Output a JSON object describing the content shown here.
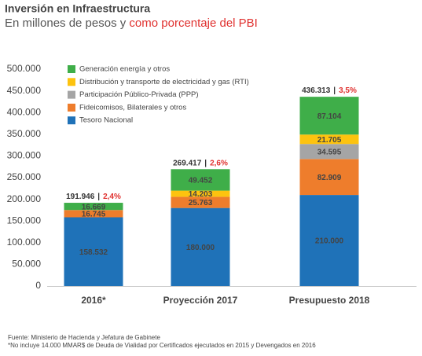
{
  "chart_data": {
    "type": "stacked-bar",
    "title": "Inversión en Infraestructura",
    "subtitle": "En millones de pesos y ",
    "subtitle_highlight": "como porcentaje del PBI",
    "categories": [
      "2016*",
      "Proyección 2017",
      "Presupuesto 2018"
    ],
    "series": [
      {
        "name": "Tesoro Nacional",
        "color": "#1f72b8",
        "values": [
          158532,
          180000,
          210000
        ],
        "value_labels": [
          "158.532",
          "180.000",
          "210.000"
        ]
      },
      {
        "name": "Fideicomisos, Bilaterales y otros",
        "color": "#ee7d2c",
        "values": [
          16745,
          25763,
          82909
        ],
        "value_labels": [
          "16.745",
          "25.763",
          "82.909"
        ]
      },
      {
        "name": "Participación Público-Privada (PPP)",
        "color": "#a5a5a5",
        "values": [
          null,
          null,
          34595
        ],
        "value_labels": [
          null,
          null,
          "34.595"
        ]
      },
      {
        "name": "Distribución y transporte de electricidad y gas (RTI)",
        "color": "#fdc30f",
        "values": [
          null,
          14203,
          21705
        ],
        "value_labels": [
          null,
          "14.203",
          "21.705"
        ]
      },
      {
        "name": "Generación energía y otros",
        "color": "#3fae49",
        "values": [
          16669,
          49452,
          87104
        ],
        "value_labels": [
          "16.669",
          "49.452",
          "87.104"
        ]
      }
    ],
    "totals": {
      "values": [
        191946,
        269417,
        436313
      ],
      "value_labels": [
        "191.946",
        "269.417",
        "436.313"
      ]
    },
    "total_separator": "|",
    "gdp_share": {
      "values": [
        2.4,
        2.6,
        3.5
      ],
      "value_labels": [
        "2,4%",
        "2,6%",
        "3,5%"
      ],
      "color": "#e0312f"
    },
    "ylim": [
      0,
      500000
    ],
    "yticks": [
      {
        "value": 0,
        "label": "0"
      },
      {
        "value": 50000,
        "label": "50.000"
      },
      {
        "value": 100000,
        "label": "100.000"
      },
      {
        "value": 150000,
        "label": "150.000"
      },
      {
        "value": 200000,
        "label": "200.000"
      },
      {
        "value": 250000,
        "label": "250.000"
      },
      {
        "value": 300000,
        "label": "300.000"
      },
      {
        "value": 350000,
        "label": "350.000"
      },
      {
        "value": 400000,
        "label": "400.000"
      },
      {
        "value": 450000,
        "label": "450.000"
      },
      {
        "value": 500000,
        "label": "500.000"
      }
    ],
    "grid": false,
    "legend_position": "top-left",
    "notes": [
      "Fuente: Ministerio de Hacienda y Jefatura de Gabinete",
      "*No incluye 14.000 MMAR$ de Deuda de Vialidad por Certificados ejecutados en 2015 y Devengados en 2016"
    ]
  }
}
